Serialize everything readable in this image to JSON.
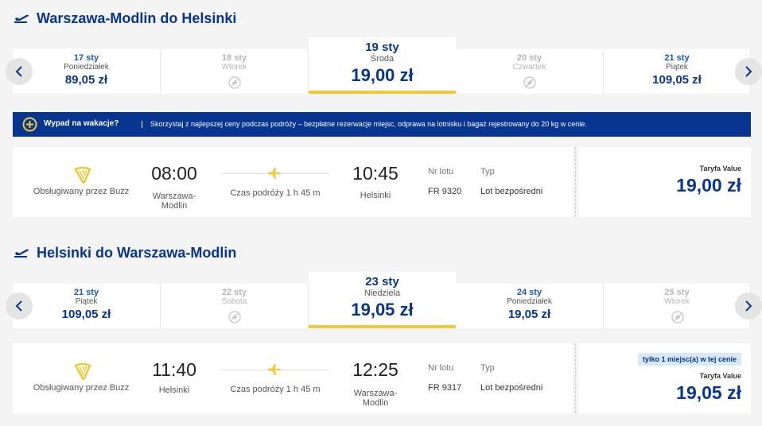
{
  "legs": [
    {
      "title": "Warszawa-Modlin do Helsinki",
      "selected": 2,
      "dates": [
        {
          "date": "17 sty",
          "day": "Poniedziałek",
          "price": "89,05 zł"
        },
        {
          "date": "18 sty",
          "day": "Wtorek"
        },
        {
          "date": "19 sty",
          "day": "Środa",
          "price": "19,00 zł"
        },
        {
          "date": "20 sty",
          "day": "Czwartek"
        },
        {
          "date": "21 sty",
          "day": "Piątek",
          "price": "109,05 zł"
        }
      ],
      "banner": {
        "title": "Wypad na wakacje?",
        "text": "Skorzystaj z najlepszej ceny podczas podróży – bezpłatne rezerwacje miejsc, odprawa na lotnisku i bagaż rejestrowany do 20 kg w cenie."
      },
      "flight": {
        "operator": "Obsługiwany przez Buzz",
        "dep_time": "08:00",
        "dep_city": "Warszawa-Modlin",
        "duration": "Czas podróży 1 h 45 m",
        "arr_time": "10:45",
        "arr_city": "Helsinki",
        "flight_no_label": "Nr lotu",
        "flight_no": "FR 9320",
        "type_label": "Typ",
        "type": "Lot bezpośredni",
        "fare_label": "Taryfa Value",
        "fare": "19,00 zł"
      }
    },
    {
      "title": "Helsinki do Warszawa-Modlin",
      "selected": 2,
      "dates": [
        {
          "date": "21 sty",
          "day": "Piątek",
          "price": "109,05 zł"
        },
        {
          "date": "22 sty",
          "day": "Sobota"
        },
        {
          "date": "23 sty",
          "day": "Niedziela",
          "price": "19,05 zł"
        },
        {
          "date": "24 sty",
          "day": "Poniedziałek",
          "price": "19,05 zł"
        },
        {
          "date": "25 sty",
          "day": "Wtorek"
        }
      ],
      "flight": {
        "operator": "Obsługiwany przez Buzz",
        "dep_time": "11:40",
        "dep_city": "Helsinki",
        "duration": "Czas podróży 1 h 45 m",
        "arr_time": "12:25",
        "arr_city": "Warszawa-Modlin",
        "flight_no_label": "Nr lotu",
        "flight_no": "FR 9317",
        "type_label": "Typ",
        "type": "Lot bezpośredni",
        "badge": "tylko 1 miejsc(a) w tej cenie",
        "fare_label": "Taryfa Value",
        "fare": "19,05 zł"
      }
    }
  ]
}
